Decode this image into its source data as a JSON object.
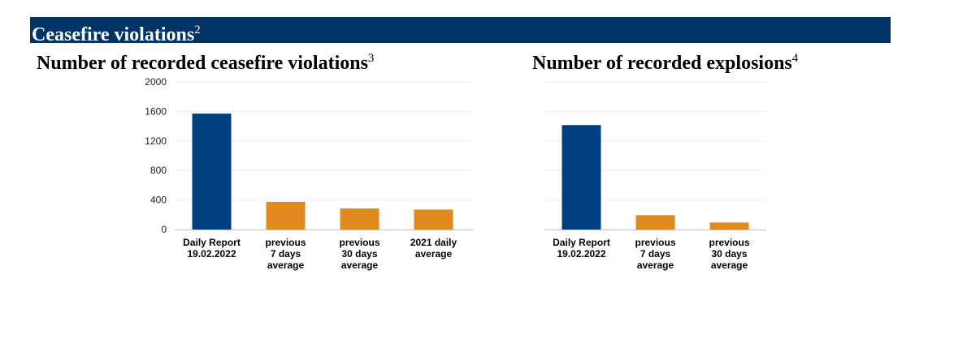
{
  "section_header": {
    "title": "Ceasefire violations",
    "footnote": "2"
  },
  "colors": {
    "header_bg": "#003366",
    "daily_bar": "#003f7f",
    "average_bar": "#e08a1e",
    "gridline": "#eeeeee"
  },
  "chart_data": [
    {
      "type": "bar",
      "title": "Number of recorded ceasefire violations",
      "title_footnote": "3",
      "categories": [
        [
          "Daily Report",
          "19.02.2022"
        ],
        [
          "previous",
          "7 days",
          "average"
        ],
        [
          "previous",
          "30 days",
          "average"
        ],
        [
          "2021 daily",
          "average"
        ]
      ],
      "values": [
        1570,
        375,
        285,
        270
      ],
      "bar_colors": [
        "#003f7f",
        "#e08a1e",
        "#e08a1e",
        "#e08a1e"
      ],
      "ylim": [
        0,
        2000
      ],
      "yticks": [
        0,
        400,
        800,
        1200,
        1600,
        2000
      ],
      "grid": true
    },
    {
      "type": "bar",
      "title": "Number of recorded explosions",
      "title_footnote": "4",
      "categories": [
        [
          "Daily Report",
          "19.02.2022"
        ],
        [
          "previous",
          "7 days",
          "average"
        ],
        [
          "previous",
          "30 days",
          "average"
        ]
      ],
      "values": [
        1415,
        195,
        95
      ],
      "bar_colors": [
        "#003f7f",
        "#e08a1e",
        "#e08a1e"
      ],
      "ylim": [
        0,
        2000
      ],
      "grid": true
    }
  ]
}
